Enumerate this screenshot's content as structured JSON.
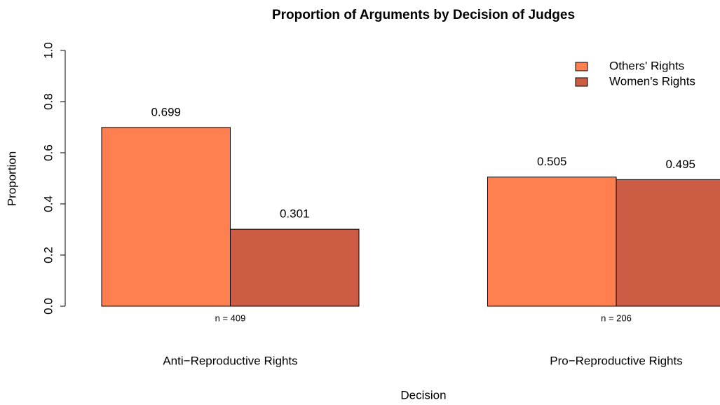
{
  "chart_data": {
    "type": "bar",
    "title": "Proportion of Arguments  by Decision of Judges",
    "x_label": "Decision",
    "y_label": "Proportion",
    "categories": [
      "Anti−Reproductive Rights",
      "Pro−Reproductive Rights"
    ],
    "annotations": [
      "n = 409",
      "n = 206"
    ],
    "series": [
      {
        "name": "Others' Rights",
        "color": "#FF7F50",
        "values": [
          0.699,
          0.505
        ]
      },
      {
        "name": "Women's Rights",
        "color": "#CD5C45",
        "values": [
          0.301,
          0.495
        ]
      }
    ],
    "ylim": [
      0,
      1
    ],
    "yticks": [
      {
        "value": 0,
        "label": "0.0"
      },
      0.2,
      0.4,
      0.6,
      0.8,
      {
        "value": 1,
        "label": "1.0"
      }
    ],
    "legend": "top-right"
  }
}
